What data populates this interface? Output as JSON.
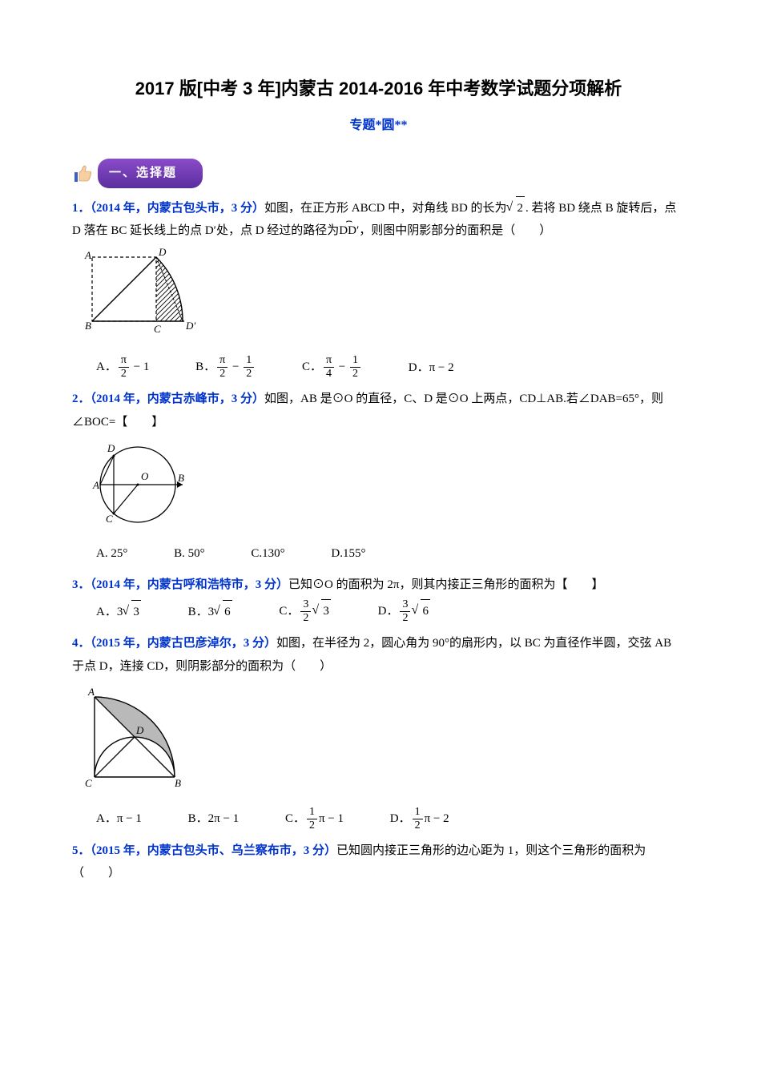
{
  "title": "2017 版[中考 3 年]内蒙古 2014-2016 年中考数学试题分项解析",
  "subtitle": "专题*圆**",
  "section_header": "一、选择题",
  "problems": [
    {
      "num": "1．",
      "source": "（2014 年，内蒙古包头市，3 分）",
      "text_before_sqrt": "如图，在正方形 ABCD 中，对角线 BD 的长为",
      "sqrt_val": "2",
      "text_mid": ". 若将 BD 绕点 B 旋转后，点 D 落在 BC 延长线上的点 D′处，点 D 经过的路径为",
      "arc_text": "DD′",
      "text_after": "，则图中阴影部分的面积是（　　）",
      "figure": {
        "type": "square_arc",
        "labels": {
          "A": "A",
          "B": "B",
          "C": "C",
          "D": "D",
          "Dp": "D′"
        },
        "stroke": "#000000",
        "fill_hatch": "#000000"
      },
      "options": [
        {
          "label": "A．",
          "html": "<span class='frac'><span class='fn'>π</span><span class='fd'>2</span></span> − 1"
        },
        {
          "label": "B．",
          "html": "<span class='frac'><span class='fn'>π</span><span class='fd'>2</span></span> − <span class='frac'><span class='fn'>1</span><span class='fd'>2</span></span>"
        },
        {
          "label": "C．",
          "html": "<span class='frac'><span class='fn'>π</span><span class='fd'>4</span></span> − <span class='frac'><span class='fn'>1</span><span class='fd'>2</span></span>"
        },
        {
          "label": "D．",
          "html": "π − 2"
        }
      ]
    },
    {
      "num": "2．",
      "source": "（2014 年，内蒙古赤峰市，3 分）",
      "text": "如图，AB 是⊙O 的直径，C、D 是⊙O 上两点，CD⊥AB.若∠DAB=65°，则∠BOC=【　　】",
      "figure": {
        "type": "circle_AB",
        "labels": {
          "A": "A",
          "B": "B",
          "C": "C",
          "D": "D",
          "O": "O"
        },
        "stroke": "#000000"
      },
      "options": [
        {
          "label": "A.",
          "text": "25°"
        },
        {
          "label": "B.",
          "text": "50°"
        },
        {
          "label": "C.",
          "text": "130°"
        },
        {
          "label": "D.",
          "text": "155°"
        }
      ]
    },
    {
      "num": "3．",
      "source": "（2014 年，内蒙古呼和浩特市，3 分）",
      "text": "已知⊙O 的面积为 2π，则其内接正三角形的面积为【　　】",
      "options": [
        {
          "label": "A．",
          "html": "3<span class='sqrt'><span class='rad'>3</span></span>"
        },
        {
          "label": "B．",
          "html": "3<span class='sqrt'><span class='rad'>6</span></span>"
        },
        {
          "label": "C．",
          "html": "<span class='frac'><span class='fn'>3</span><span class='fd'>2</span></span><span class='sqrt'><span class='rad'>3</span></span>"
        },
        {
          "label": "D．",
          "html": "<span class='frac'><span class='fn'>3</span><span class='fd'>2</span></span><span class='sqrt'><span class='rad'>6</span></span>"
        }
      ]
    },
    {
      "num": "4．",
      "source": "（2015 年，内蒙古巴彦淖尔，3 分）",
      "text": "如图，在半径为 2，圆心角为 90°的扇形内，以 BC 为直径作半圆，交弦 AB 于点 D，连接 CD，则阴影部分的面积为（　　）",
      "figure": {
        "type": "quarter_semicircle",
        "labels": {
          "A": "A",
          "B": "B",
          "C": "C",
          "D": "D"
        },
        "stroke": "#000000",
        "fill": "#b9b9b9"
      },
      "options": [
        {
          "label": "A．",
          "html": "π − 1"
        },
        {
          "label": "B．",
          "html": "2π − 1"
        },
        {
          "label": "C．",
          "html": "<span class='frac'><span class='fn'>1</span><span class='fd'>2</span></span>π − 1"
        },
        {
          "label": "D．",
          "html": "<span class='frac'><span class='fn'>1</span><span class='fd'>2</span></span>π − 2"
        }
      ]
    },
    {
      "num": "5．",
      "source": "（2015 年，内蒙古包头市、乌兰察布市，3 分）",
      "text": "已知圆内接正三角形的边心距为 1，则这个三角形的面积为（　　）"
    }
  ],
  "colors": {
    "blue": "#0033cc",
    "purple_a": "#8a4cc9",
    "purple_b": "#5a2e9e",
    "black": "#000000",
    "grey_fill": "#b9b9b9",
    "thumb_skin": "#f7cfa0",
    "thumb_sleeve": "#3a5fcd"
  }
}
